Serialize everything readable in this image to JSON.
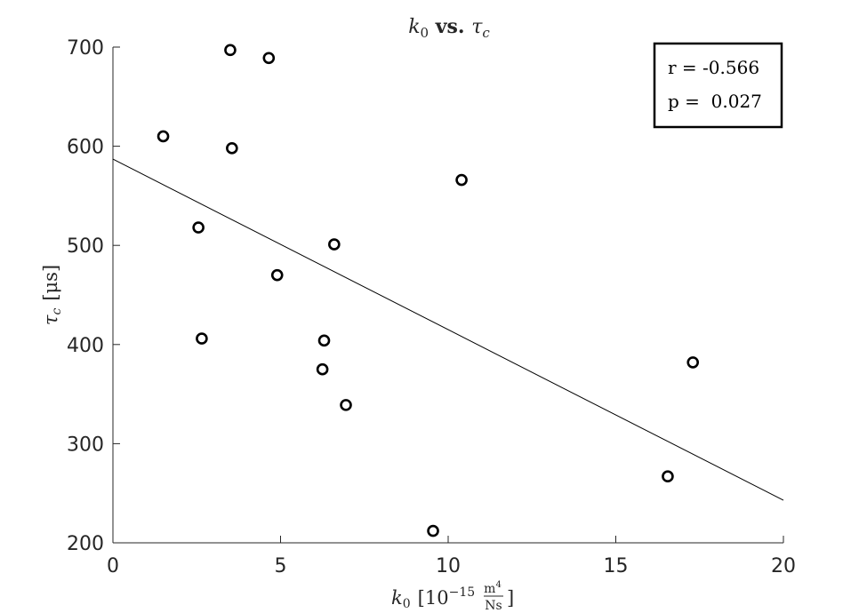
{
  "chart_data": {
    "type": "scatter",
    "title": {
      "left_symbol": "k",
      "left_subscript": "0",
      "middle": " vs. ",
      "right_symbol": "τ",
      "right_subscript": "c"
    },
    "xlabel": {
      "symbol": "k",
      "subscript": "0",
      "unit_base": "10",
      "unit_exponent": "−15",
      "fraction_numerator": "m",
      "numerator_power": "4",
      "fraction_denominator": "Ns"
    },
    "ylabel": {
      "symbol": "τ",
      "subscript": "c",
      "unit": "[μs]"
    },
    "xlim": [
      0,
      20
    ],
    "ylim": [
      200,
      700
    ],
    "xticks": [
      0,
      5,
      10,
      15,
      20
    ],
    "yticks": [
      200,
      300,
      400,
      500,
      600,
      700
    ],
    "grid": false,
    "points": [
      {
        "x": 1.5,
        "y": 610
      },
      {
        "x": 2.55,
        "y": 518
      },
      {
        "x": 2.65,
        "y": 406
      },
      {
        "x": 3.5,
        "y": 697
      },
      {
        "x": 3.55,
        "y": 598
      },
      {
        "x": 4.65,
        "y": 689
      },
      {
        "x": 4.9,
        "y": 470
      },
      {
        "x": 6.3,
        "y": 404
      },
      {
        "x": 6.25,
        "y": 375
      },
      {
        "x": 6.6,
        "y": 501
      },
      {
        "x": 6.95,
        "y": 339
      },
      {
        "x": 9.55,
        "y": 212
      },
      {
        "x": 10.4,
        "y": 566
      },
      {
        "x": 16.55,
        "y": 267
      },
      {
        "x": 17.3,
        "y": 382
      }
    ],
    "fit_line": {
      "x": [
        0,
        20
      ],
      "y": [
        587,
        243
      ]
    },
    "stats": {
      "r_text": "r = -0.566",
      "p_text": "p =  0.027",
      "placement": "top-right"
    }
  }
}
